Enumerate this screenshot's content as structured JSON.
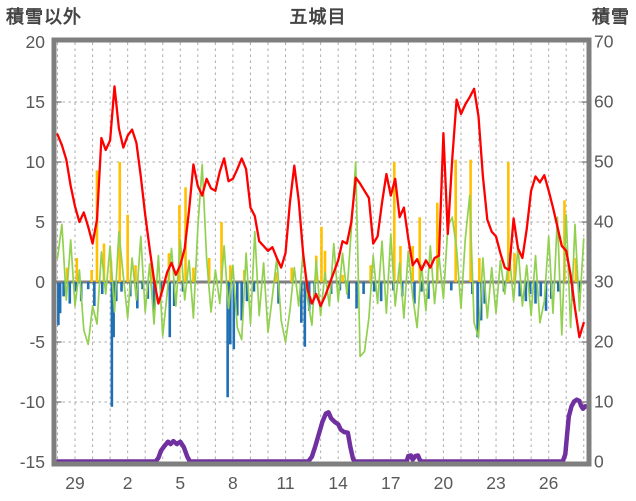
{
  "header": {
    "left_axis_label": "積雪以外",
    "title": "五城目",
    "right_axis_label": "積雪"
  },
  "colors": {
    "frame": "#7f7f7f",
    "grid": "#ababab",
    "zero_line": "#808080",
    "tick_text": "#595959",
    "header_text": "#454545",
    "red_line": "#ff0000",
    "green_line": "#92d050",
    "orange_bar": "#ffc000",
    "blue_bar": "#1f6fb5",
    "purple_line": "#7030a0"
  },
  "chart_data": {
    "type": "line",
    "title": "五城目",
    "grid": true,
    "legend": "none",
    "left_axis": {
      "label": "積雪以外",
      "range": [
        -15,
        20
      ],
      "ticks": [
        20,
        15,
        10,
        5,
        0,
        -5,
        -10,
        -15
      ]
    },
    "right_axis": {
      "label": "積雪",
      "range": [
        0,
        70
      ],
      "ticks": [
        70,
        60,
        50,
        40,
        30,
        20,
        10,
        0
      ]
    },
    "x_axis": {
      "tick_labels": [
        "29",
        "2",
        "5",
        "8",
        "11",
        "14",
        "17",
        "20",
        "23",
        "26"
      ],
      "tick_days": [
        1,
        4,
        7,
        10,
        13,
        16,
        19,
        22,
        25,
        28
      ],
      "range_days": [
        0,
        30.1
      ],
      "gridline_every_days": 1
    },
    "series": [
      {
        "name": "red-line",
        "type": "line",
        "axis": "left",
        "color_key": "red_line",
        "t_start": 0,
        "t_step": 0.25,
        "values": [
          12.3,
          11.4,
          10.2,
          8.0,
          6.3,
          5.0,
          5.8,
          4.6,
          3.2,
          5.2,
          12.0,
          11.0,
          11.8,
          16.3,
          12.8,
          11.2,
          12.2,
          12.7,
          11.6,
          8.8,
          5.6,
          2.8,
          0.2,
          -1.8,
          -0.6,
          0.8,
          1.6,
          0.6,
          1.4,
          2.8,
          6.0,
          9.8,
          8.0,
          7.2,
          8.6,
          7.8,
          7.6,
          9.2,
          10.3,
          8.4,
          8.6,
          9.4,
          10.3,
          9.4,
          6.2,
          5.5,
          3.4,
          3.0,
          2.6,
          2.9,
          2.0,
          1.2,
          2.4,
          6.6,
          9.7,
          6.8,
          2.4,
          -0.6,
          -1.8,
          -1.0,
          -2.0,
          -1.2,
          -0.2,
          0.8,
          1.8,
          3.4,
          3.2,
          5.0,
          8.7,
          8.2,
          7.6,
          7.0,
          3.2,
          3.8,
          6.6,
          9.0,
          7.2,
          8.6,
          5.4,
          6.2,
          3.6,
          1.4,
          1.9,
          1.0,
          1.8,
          1.2,
          2.0,
          2.2,
          12.4,
          4.0,
          10.2,
          15.2,
          14.0,
          14.8,
          15.4,
          16.1,
          13.8,
          8.8,
          5.2,
          4.2,
          3.8,
          2.4,
          1.2,
          1.0,
          5.3,
          2.8,
          2.0,
          4.4,
          7.6,
          8.8,
          8.3,
          8.9,
          7.6,
          6.2,
          4.6,
          3.0,
          2.6,
          0.6,
          -2.2,
          -4.6,
          -3.4
        ]
      },
      {
        "name": "green-line",
        "type": "line",
        "axis": "left",
        "color_key": "green_line",
        "t_start": 0,
        "t_step": 0.25,
        "values": [
          2.0,
          4.8,
          -1.5,
          3.5,
          -2.0,
          1.0,
          -4.0,
          -5.2,
          -2.0,
          -3.5,
          2.5,
          -1.0,
          3.0,
          -2.5,
          4.2,
          0.5,
          -3.0,
          2.0,
          -1.5,
          3.8,
          -2.5,
          1.5,
          -3.5,
          2.2,
          -4.5,
          -1.0,
          2.8,
          -2.0,
          3.5,
          -1.5,
          1.8,
          -3.0,
          4.5,
          9.8,
          2.0,
          -2.5,
          1.0,
          -1.8,
          3.0,
          -2.2,
          1.4,
          -3.8,
          -4.8,
          2.4,
          -3.5,
          4.2,
          -2.8,
          1.6,
          -4.2,
          -1.2,
          2.0,
          -3.2,
          -5.0,
          -2.4,
          1.2,
          -2.0,
          2.6,
          -1.4,
          -3.6,
          1.8,
          -2.8,
          0.8,
          -2.0,
          3.2,
          -1.6,
          2.4,
          -1.0,
          4.4,
          10.0,
          -6.2,
          -5.8,
          -3.0,
          2.2,
          -1.8,
          3.4,
          -2.6,
          4.0,
          -2.0,
          1.6,
          -3.0,
          2.6,
          -1.2,
          -3.8,
          1.4,
          -2.4,
          3.0,
          -1.8,
          2.2,
          -1.4,
          4.6,
          5.4,
          2.8,
          -2.2,
          3.6,
          7.2,
          -3.4,
          -4.6,
          2.0,
          -3.0,
          1.2,
          -2.6,
          1.8,
          -1.0,
          2.4,
          -1.6,
          3.0,
          -2.0,
          1.4,
          -2.8,
          2.2,
          -3.4,
          -1.6,
          3.8,
          -2.6,
          5.4,
          -4.4,
          5.6,
          -3.8,
          4.8,
          -2.4,
          3.6
        ]
      },
      {
        "name": "orange-bars",
        "type": "bar",
        "axis": "left",
        "color_key": "orange_bar",
        "points": [
          [
            0.55,
            1.2
          ],
          [
            1.1,
            2.0
          ],
          [
            1.95,
            1.0
          ],
          [
            2.25,
            9.3
          ],
          [
            2.65,
            3.2
          ],
          [
            3.05,
            1.8
          ],
          [
            3.55,
            10.0
          ],
          [
            4.0,
            5.6
          ],
          [
            4.45,
            1.4
          ],
          [
            5.35,
            1.6
          ],
          [
            6.35,
            2.4
          ],
          [
            6.95,
            6.4
          ],
          [
            7.3,
            7.9
          ],
          [
            7.75,
            1.2
          ],
          [
            8.65,
            2.0
          ],
          [
            9.35,
            5.0
          ],
          [
            9.85,
            1.4
          ],
          [
            10.65,
            1.0
          ],
          [
            12.45,
            0.8
          ],
          [
            13.35,
            1.2
          ],
          [
            14.75,
            2.2
          ],
          [
            15.05,
            4.6
          ],
          [
            15.25,
            2.6
          ],
          [
            16.25,
            0.6
          ],
          [
            17.85,
            1.4
          ],
          [
            19.2,
            10.0
          ],
          [
            19.55,
            3.0
          ],
          [
            20.25,
            3.0
          ],
          [
            20.65,
            5.4
          ],
          [
            21.65,
            6.6
          ],
          [
            22.7,
            10.2
          ],
          [
            23.55,
            10.2
          ],
          [
            24.05,
            2.0
          ],
          [
            25.7,
            10.0
          ],
          [
            26.05,
            2.4
          ],
          [
            28.9,
            6.8
          ],
          [
            29.55,
            2.0
          ]
        ]
      },
      {
        "name": "blue-bars",
        "type": "bar",
        "axis": "left",
        "color_key": "blue_bar",
        "points": [
          [
            0.05,
            -3.6
          ],
          [
            0.15,
            -2.6
          ],
          [
            0.35,
            -1.2
          ],
          [
            0.7,
            -1.8
          ],
          [
            1.05,
            -0.8
          ],
          [
            1.35,
            -1.6
          ],
          [
            1.75,
            -0.6
          ],
          [
            2.1,
            -2.0
          ],
          [
            2.55,
            -1.0
          ],
          [
            3.1,
            -10.4
          ],
          [
            3.2,
            -4.6
          ],
          [
            3.35,
            -1.6
          ],
          [
            3.65,
            -0.8
          ],
          [
            4.15,
            -1.2
          ],
          [
            4.55,
            -2.2
          ],
          [
            4.85,
            -0.6
          ],
          [
            5.15,
            -1.4
          ],
          [
            5.5,
            -2.6
          ],
          [
            5.9,
            -1.0
          ],
          [
            6.4,
            -4.6
          ],
          [
            6.65,
            -2.0
          ],
          [
            7.15,
            -0.8
          ],
          [
            9.7,
            -9.6
          ],
          [
            9.85,
            -5.2
          ],
          [
            10.05,
            -5.6
          ],
          [
            10.25,
            -2.8
          ],
          [
            10.5,
            -3.2
          ],
          [
            10.8,
            -1.6
          ],
          [
            11.2,
            -0.8
          ],
          [
            12.6,
            -1.8
          ],
          [
            13.9,
            -3.4
          ],
          [
            14.1,
            -5.4
          ],
          [
            14.35,
            -2.4
          ],
          [
            14.65,
            -1.2
          ],
          [
            15.6,
            -1.0
          ],
          [
            16.1,
            -0.7
          ],
          [
            16.6,
            -1.4
          ],
          [
            17.05,
            -2.2
          ],
          [
            17.45,
            -1.0
          ],
          [
            18.05,
            -0.8
          ],
          [
            18.45,
            -1.6
          ],
          [
            19.15,
            -0.7
          ],
          [
            19.65,
            -1.2
          ],
          [
            20.35,
            -1.8
          ],
          [
            20.75,
            -0.8
          ],
          [
            21.15,
            -1.4
          ],
          [
            22.45,
            -0.7
          ],
          [
            23.65,
            -1.0
          ],
          [
            23.95,
            -4.6
          ],
          [
            24.15,
            -3.2
          ],
          [
            24.35,
            -1.8
          ],
          [
            25.45,
            -0.8
          ],
          [
            26.35,
            -1.2
          ],
          [
            26.7,
            -1.6
          ],
          [
            26.95,
            -1.0
          ],
          [
            27.25,
            -1.8
          ],
          [
            27.55,
            -1.2
          ],
          [
            27.85,
            -2.4
          ],
          [
            28.15,
            -1.4
          ],
          [
            28.55,
            -0.8
          ],
          [
            29.35,
            -1.6
          ],
          [
            29.75,
            -0.9
          ]
        ]
      },
      {
        "name": "purple-line",
        "type": "line",
        "axis": "right",
        "color_key": "purple_line",
        "points": [
          [
            0,
            0
          ],
          [
            5.6,
            0
          ],
          [
            5.75,
            0.6
          ],
          [
            5.9,
            1.8
          ],
          [
            6.1,
            2.6
          ],
          [
            6.3,
            3.3
          ],
          [
            6.45,
            2.9
          ],
          [
            6.6,
            3.4
          ],
          [
            6.8,
            2.9
          ],
          [
            7.0,
            3.3
          ],
          [
            7.2,
            2.4
          ],
          [
            7.4,
            0.8
          ],
          [
            7.55,
            0
          ],
          [
            14.3,
            0
          ],
          [
            14.5,
            0.8
          ],
          [
            14.7,
            2.6
          ],
          [
            14.9,
            4.6
          ],
          [
            15.1,
            6.6
          ],
          [
            15.3,
            8.0
          ],
          [
            15.45,
            8.2
          ],
          [
            15.6,
            7.2
          ],
          [
            15.8,
            6.6
          ],
          [
            16.0,
            6.2
          ],
          [
            16.15,
            5.3
          ],
          [
            16.35,
            4.9
          ],
          [
            16.55,
            4.8
          ],
          [
            16.7,
            2.4
          ],
          [
            16.85,
            0.4
          ],
          [
            16.95,
            0
          ],
          [
            19.9,
            0
          ],
          [
            20.0,
            0.9
          ],
          [
            20.15,
            1.0
          ],
          [
            20.25,
            0.3
          ],
          [
            20.4,
            0.9
          ],
          [
            20.55,
            1.0
          ],
          [
            20.65,
            0.3
          ],
          [
            20.75,
            0
          ],
          [
            28.8,
            0
          ],
          [
            28.95,
            1.2
          ],
          [
            29.05,
            4.5
          ],
          [
            29.15,
            7.5
          ],
          [
            29.3,
            9.2
          ],
          [
            29.45,
            10.0
          ],
          [
            29.6,
            10.3
          ],
          [
            29.75,
            10.1
          ],
          [
            29.85,
            9.3
          ],
          [
            29.95,
            8.8
          ],
          [
            30.1,
            9.2
          ]
        ]
      }
    ]
  }
}
